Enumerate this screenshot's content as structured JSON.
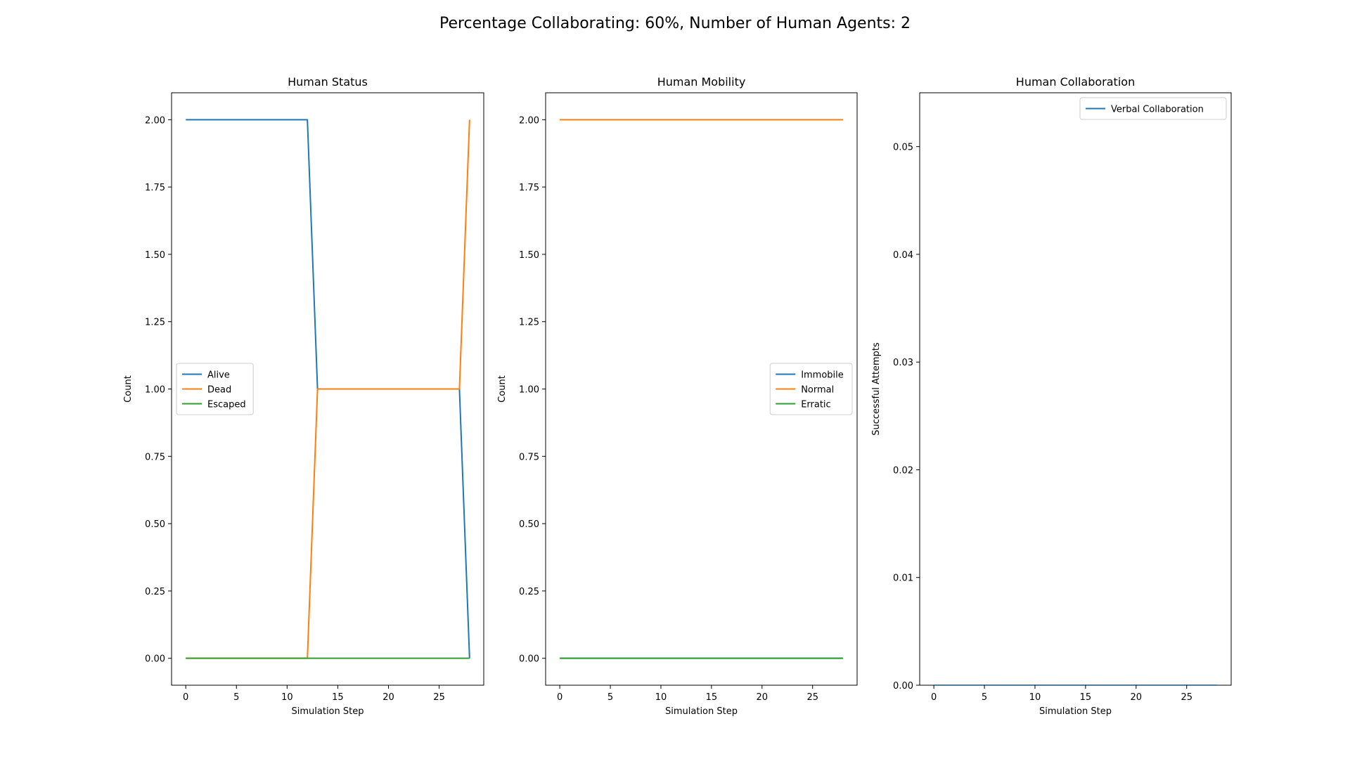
{
  "suptitle": "Percentage Collaborating: 60%, Number of Human Agents: 2",
  "colors": {
    "blue": "#1f77b4",
    "orange": "#ff7f0e",
    "green": "#2ca02c"
  },
  "chart_data": [
    {
      "type": "line",
      "title": "Human Status",
      "xlabel": "Simulation Step",
      "ylabel": "Count",
      "xlim": [
        -1.4,
        29.4
      ],
      "ylim": [
        -0.1,
        2.1
      ],
      "xticks": [
        0,
        5,
        10,
        15,
        20,
        25
      ],
      "yticks": [
        0,
        0.25,
        0.5,
        0.75,
        1.0,
        1.25,
        1.5,
        1.75,
        2.0
      ],
      "ytick_decimals": 2,
      "legend_position": "center-left",
      "series": [
        {
          "name": "Alive",
          "color": "#1f77b4",
          "x": [
            0,
            1,
            2,
            3,
            4,
            5,
            6,
            7,
            8,
            9,
            10,
            11,
            12,
            13,
            14,
            15,
            16,
            17,
            18,
            19,
            20,
            21,
            22,
            23,
            24,
            25,
            26,
            27,
            28
          ],
          "y": [
            2,
            2,
            2,
            2,
            2,
            2,
            2,
            2,
            2,
            2,
            2,
            2,
            2,
            1,
            1,
            1,
            1,
            1,
            1,
            1,
            1,
            1,
            1,
            1,
            1,
            1,
            1,
            1,
            0
          ]
        },
        {
          "name": "Dead",
          "color": "#ff7f0e",
          "x": [
            0,
            1,
            2,
            3,
            4,
            5,
            6,
            7,
            8,
            9,
            10,
            11,
            12,
            13,
            14,
            15,
            16,
            17,
            18,
            19,
            20,
            21,
            22,
            23,
            24,
            25,
            26,
            27,
            28
          ],
          "y": [
            0,
            0,
            0,
            0,
            0,
            0,
            0,
            0,
            0,
            0,
            0,
            0,
            0,
            1,
            1,
            1,
            1,
            1,
            1,
            1,
            1,
            1,
            1,
            1,
            1,
            1,
            1,
            1,
            2
          ]
        },
        {
          "name": "Escaped",
          "color": "#2ca02c",
          "x": [
            0,
            1,
            2,
            3,
            4,
            5,
            6,
            7,
            8,
            9,
            10,
            11,
            12,
            13,
            14,
            15,
            16,
            17,
            18,
            19,
            20,
            21,
            22,
            23,
            24,
            25,
            26,
            27,
            28
          ],
          "y": [
            0,
            0,
            0,
            0,
            0,
            0,
            0,
            0,
            0,
            0,
            0,
            0,
            0,
            0,
            0,
            0,
            0,
            0,
            0,
            0,
            0,
            0,
            0,
            0,
            0,
            0,
            0,
            0,
            0
          ]
        }
      ]
    },
    {
      "type": "line",
      "title": "Human Mobility",
      "xlabel": "Simulation Step",
      "ylabel": "Count",
      "xlim": [
        -1.4,
        29.4
      ],
      "ylim": [
        -0.1,
        2.1
      ],
      "xticks": [
        0,
        5,
        10,
        15,
        20,
        25
      ],
      "yticks": [
        0,
        0.25,
        0.5,
        0.75,
        1.0,
        1.25,
        1.5,
        1.75,
        2.0
      ],
      "ytick_decimals": 2,
      "legend_position": "center-right",
      "series": [
        {
          "name": "Immobile",
          "color": "#1f77b4",
          "x": [
            0,
            1,
            2,
            3,
            4,
            5,
            6,
            7,
            8,
            9,
            10,
            11,
            12,
            13,
            14,
            15,
            16,
            17,
            18,
            19,
            20,
            21,
            22,
            23,
            24,
            25,
            26,
            27,
            28
          ],
          "y": [
            0,
            0,
            0,
            0,
            0,
            0,
            0,
            0,
            0,
            0,
            0,
            0,
            0,
            0,
            0,
            0,
            0,
            0,
            0,
            0,
            0,
            0,
            0,
            0,
            0,
            0,
            0,
            0,
            0
          ]
        },
        {
          "name": "Normal",
          "color": "#ff7f0e",
          "x": [
            0,
            1,
            2,
            3,
            4,
            5,
            6,
            7,
            8,
            9,
            10,
            11,
            12,
            13,
            14,
            15,
            16,
            17,
            18,
            19,
            20,
            21,
            22,
            23,
            24,
            25,
            26,
            27,
            28
          ],
          "y": [
            2,
            2,
            2,
            2,
            2,
            2,
            2,
            2,
            2,
            2,
            2,
            2,
            2,
            2,
            2,
            2,
            2,
            2,
            2,
            2,
            2,
            2,
            2,
            2,
            2,
            2,
            2,
            2,
            2
          ]
        },
        {
          "name": "Erratic",
          "color": "#2ca02c",
          "x": [
            0,
            1,
            2,
            3,
            4,
            5,
            6,
            7,
            8,
            9,
            10,
            11,
            12,
            13,
            14,
            15,
            16,
            17,
            18,
            19,
            20,
            21,
            22,
            23,
            24,
            25,
            26,
            27,
            28
          ],
          "y": [
            0,
            0,
            0,
            0,
            0,
            0,
            0,
            0,
            0,
            0,
            0,
            0,
            0,
            0,
            0,
            0,
            0,
            0,
            0,
            0,
            0,
            0,
            0,
            0,
            0,
            0,
            0,
            0,
            0
          ]
        }
      ]
    },
    {
      "type": "line",
      "title": "Human Collaboration",
      "xlabel": "Simulation Step",
      "ylabel": "Successful Attempts",
      "xlim": [
        -1.4,
        29.4
      ],
      "ylim": [
        0,
        0.055
      ],
      "xticks": [
        0,
        5,
        10,
        15,
        20,
        25
      ],
      "yticks": [
        0,
        0.01,
        0.02,
        0.03,
        0.04,
        0.05
      ],
      "ytick_decimals": 2,
      "legend_position": "upper-right",
      "series": [
        {
          "name": "Verbal Collaboration",
          "color": "#1f77b4",
          "x": [
            0,
            1,
            2,
            3,
            4,
            5,
            6,
            7,
            8,
            9,
            10,
            11,
            12,
            13,
            14,
            15,
            16,
            17,
            18,
            19,
            20,
            21,
            22,
            23,
            24,
            25,
            26,
            27,
            28
          ],
          "y": [
            0,
            0,
            0,
            0,
            0,
            0,
            0,
            0,
            0,
            0,
            0,
            0,
            0,
            0,
            0,
            0,
            0,
            0,
            0,
            0,
            0,
            0,
            0,
            0,
            0,
            0,
            0,
            0,
            0
          ]
        }
      ]
    }
  ]
}
